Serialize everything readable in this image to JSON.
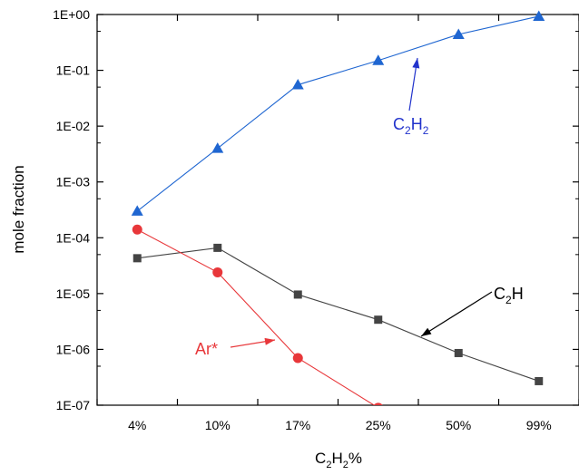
{
  "chart_data": {
    "type": "line",
    "title": "",
    "xlabel": "C2H2%",
    "xlabel_parts": {
      "pre": "C",
      "sub1": "2",
      "mid": "H",
      "sub2": "2",
      "post": "%"
    },
    "ylabel": "mole fraction",
    "yscale": "log",
    "ylim": [
      1e-07,
      1
    ],
    "ytick_values": [
      1e-07,
      1e-06,
      1e-05,
      0.0001,
      0.001,
      0.01,
      0.1,
      1
    ],
    "ytick_labels": [
      "1E-07",
      "1E-06",
      "1E-05",
      "1E-04",
      "1E-03",
      "1E-02",
      "1E-01",
      "1E+00"
    ],
    "categories": [
      "4%",
      "10%",
      "17%",
      "25%",
      "50%",
      "99%"
    ],
    "grid": false,
    "legend": "none",
    "series": [
      {
        "key": "c2h2",
        "color": "#1f66d1",
        "marker": "triangle",
        "values": [
          0.0003,
          0.004,
          0.055,
          0.15,
          0.44,
          0.93
        ]
      },
      {
        "key": "c2h",
        "color": "#444444",
        "marker": "square",
        "values": [
          4.3e-05,
          6.6e-05,
          9.6e-06,
          3.4e-06,
          8.6e-07,
          2.7e-07
        ]
      },
      {
        "key": "ar",
        "color": "#e8373a",
        "marker": "circle",
        "values": [
          0.00014,
          2.4e-05,
          7e-07,
          9e-08,
          null,
          null
        ]
      }
    ],
    "annotations": [
      {
        "key": "c2h2",
        "color": "#2233cc",
        "parts": {
          "pre": "C",
          "sub1": "2",
          "mid": "H",
          "sub2": "2"
        },
        "text": "C2H2"
      },
      {
        "key": "c2h",
        "color": "#000000",
        "parts": {
          "pre": "C",
          "sub1": "2",
          "mid": "H",
          "sub2": ""
        },
        "text": "C2H"
      },
      {
        "key": "ar",
        "color": "#e8373a",
        "parts": {
          "pre": "Ar*",
          "sub1": "",
          "mid": "",
          "sub2": ""
        },
        "text": "Ar*"
      }
    ]
  }
}
